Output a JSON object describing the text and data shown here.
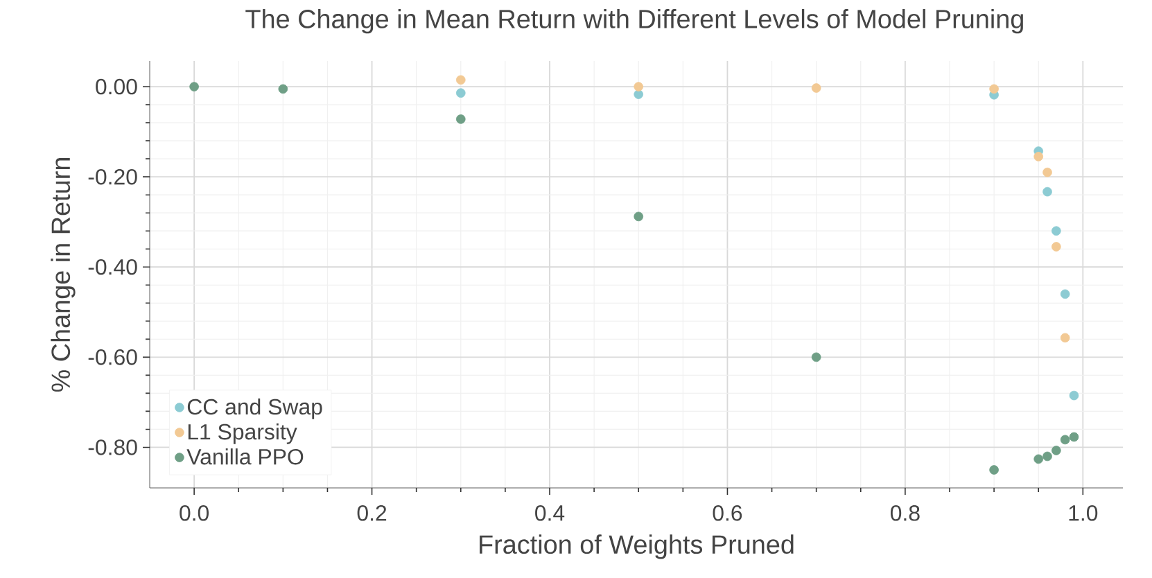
{
  "chart_data": {
    "type": "scatter",
    "title": "The Change in Mean Return with Different Levels of Model Pruning",
    "xlabel": "Fraction of Weights Pruned",
    "ylabel": "% Change in Return",
    "xlim": [
      -0.05,
      1.045
    ],
    "ylim": [
      -0.89,
      0.057
    ],
    "xticks": [
      {
        "value": 0,
        "label": "0.0"
      },
      {
        "value": 0.2,
        "label": "0.2"
      },
      {
        "value": 0.4,
        "label": "0.4"
      },
      {
        "value": 0.6,
        "label": "0.6"
      },
      {
        "value": 0.8,
        "label": "0.8"
      },
      {
        "value": 1,
        "label": "1.0"
      }
    ],
    "yticks": [
      {
        "value": 0,
        "label": "0.00"
      },
      {
        "value": -0.2,
        "label": "-0.20"
      },
      {
        "value": -0.4,
        "label": "-0.40"
      },
      {
        "value": -0.6,
        "label": "-0.60"
      },
      {
        "value": -0.8,
        "label": "-0.80"
      }
    ],
    "grid": true,
    "legend": "bottom left",
    "marker": "circle",
    "series": [
      {
        "name": "CC and Swap",
        "color": "#8ccbd3",
        "x": [
          0.3,
          0.5,
          0.9,
          0.95,
          0.96,
          0.97,
          0.98,
          0.99
        ],
        "values": [
          -0.014,
          -0.017,
          -0.018,
          -0.143,
          -0.233,
          -0.32,
          -0.46,
          -0.685
        ]
      },
      {
        "name": "L1 Sparsity",
        "color": "#f2c994",
        "x": [
          0.3,
          0.5,
          0.7,
          0.9,
          0.95,
          0.96,
          0.97,
          0.98
        ],
        "values": [
          0.015,
          0.0,
          -0.003,
          -0.005,
          -0.155,
          -0.19,
          -0.355,
          -0.557
        ]
      },
      {
        "name": "Vanilla PPO",
        "color": "#6f9f86",
        "x": [
          0,
          0.1,
          0.3,
          0.5,
          0.7,
          0.9,
          0.95,
          0.96,
          0.97,
          0.98,
          0.99
        ],
        "values": [
          0,
          -0.005,
          -0.072,
          -0.288,
          -0.6,
          -0.85,
          -0.826,
          -0.82,
          -0.807,
          -0.783,
          -0.777
        ]
      }
    ]
  }
}
